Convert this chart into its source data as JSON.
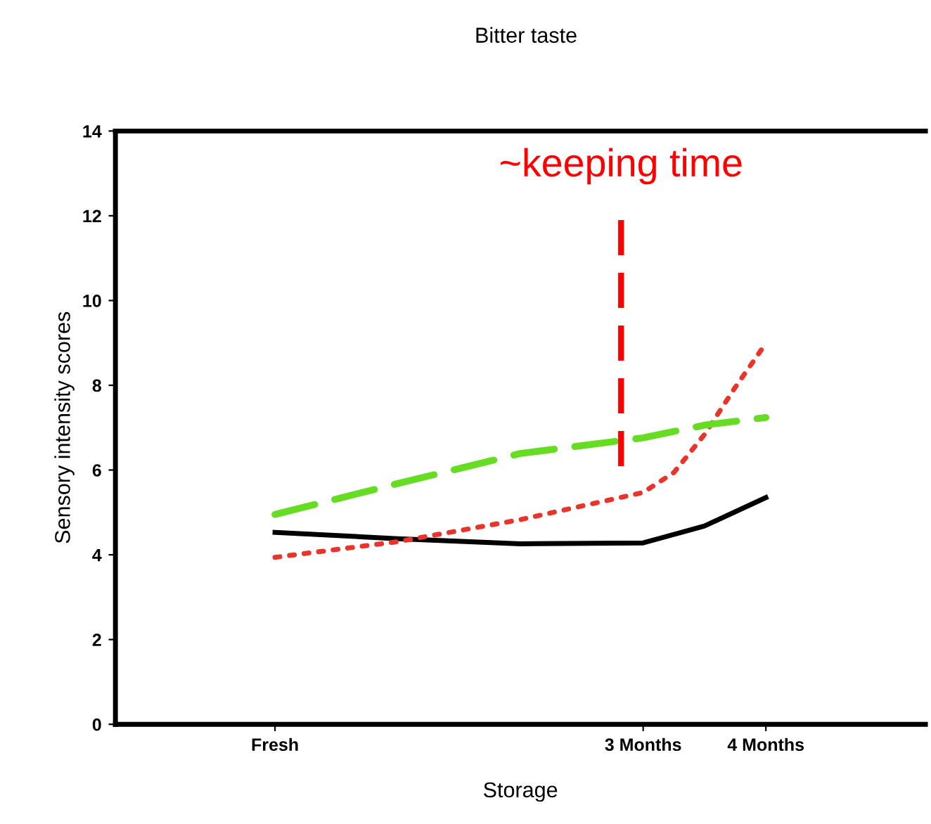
{
  "chart_data": {
    "type": "line",
    "title": "Bitter taste",
    "xlabel": "Storage",
    "ylabel": "Sensory intensity scores",
    "xlim": [
      -1.3,
      5.3
    ],
    "xticks": [
      {
        "value": 0,
        "label": "Fresh"
      },
      {
        "value": 3,
        "label": "3 Months"
      },
      {
        "value": 4,
        "label": "4 Months"
      }
    ],
    "ylim": [
      0,
      14
    ],
    "yticks": [
      0,
      2,
      4,
      6,
      8,
      10,
      12,
      14
    ],
    "grid": false,
    "series": [
      {
        "color": "#000000",
        "line_style": "solid",
        "x": [
          0,
          1,
          2,
          3,
          3.5,
          4
        ],
        "values": [
          4.53,
          4.38,
          4.26,
          4.28,
          4.68,
          5.35
        ]
      },
      {
        "color": "#e8352b",
        "line_style": "dotted",
        "x": [
          0,
          1,
          2,
          3,
          3.25,
          3.5,
          3.75,
          4
        ],
        "values": [
          3.94,
          4.31,
          4.83,
          5.47,
          5.94,
          6.84,
          7.95,
          8.99
        ]
      },
      {
        "color": "#66dd22",
        "line_style": "dashed",
        "x": [
          0,
          1,
          2,
          3,
          3.5,
          4
        ],
        "values": [
          4.95,
          5.68,
          6.39,
          6.76,
          7.06,
          7.24
        ]
      }
    ],
    "ref_lines": [
      {
        "axis": "x",
        "value": 2.82,
        "label": "~keeping time",
        "color": "#ff0000",
        "line_style": "dashed"
      }
    ]
  }
}
